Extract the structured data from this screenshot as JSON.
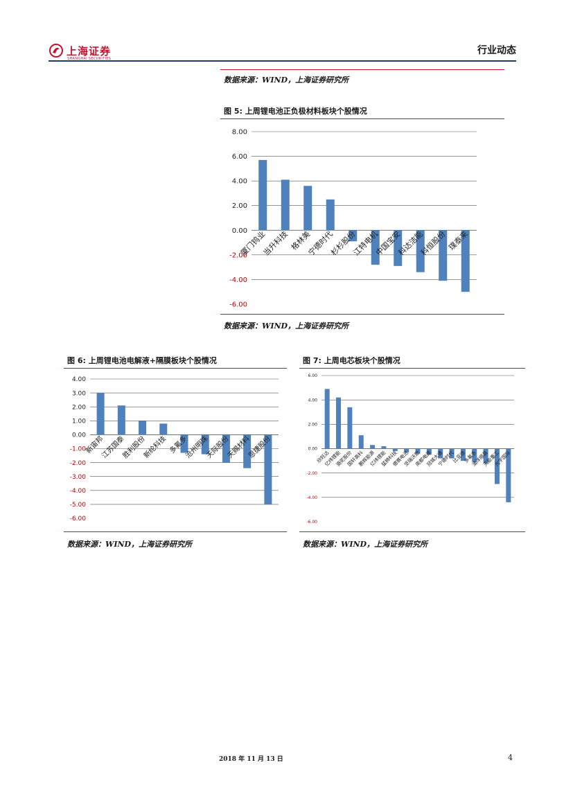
{
  "header": {
    "logo_cn": "上海证券",
    "logo_en": "SHANGHAI SECURITIES",
    "section": "行业动态",
    "colors": {
      "brand": "#c8102e",
      "rule": "#1f3a6e"
    }
  },
  "top_source": "数据来源：WIND，上海证券研究所",
  "figures": [
    {
      "title": "图 5:  上周锂电池正负极材料板块个股情况",
      "source": "数据来源：WIND，上海证券研究所"
    },
    {
      "title": "图 6:  上周锂电池电解液+隔膜板块个股情况",
      "source": "数据来源：WIND，上海证券研究所"
    },
    {
      "title": "图 7:  上周电芯板块个股情况",
      "source": "数据来源：WIND，上海证券研究所"
    }
  ],
  "chart_data": [
    {
      "type": "bar",
      "categories": [
        "厦门钨业",
        "当升科技",
        "格林美",
        "宁德时代",
        "杉杉股份",
        "江特电机",
        "中国宝安",
        "科达洁能",
        "科恒股份",
        "璞泰来"
      ],
      "values": [
        5.7,
        4.1,
        3.6,
        2.5,
        -0.9,
        -2.8,
        -2.9,
        -3.4,
        -4.1,
        -5.0
      ],
      "ylim": [
        -6,
        8
      ],
      "yticks": [
        "8.00",
        "6.00",
        "4.00",
        "2.00",
        "0.00",
        "-2.00",
        "-4.00",
        "-6.00"
      ],
      "grid": true,
      "bar_color": "#4f81bd",
      "negative_tick_color": "#c00000"
    },
    {
      "type": "bar",
      "categories": [
        "新宙邦",
        "江苏国泰",
        "胜利股份",
        "新纶科技",
        "多氟多",
        "沧州明珠",
        "天际股份",
        "天赐材料",
        "恩捷股份"
      ],
      "values": [
        3.0,
        2.1,
        1.0,
        0.8,
        -1.3,
        -1.4,
        -2.0,
        -2.4,
        -5.0
      ],
      "ylim": [
        -6,
        4
      ],
      "yticks": [
        "4.00",
        "3.00",
        "2.00",
        "1.00",
        "0.00",
        "-1.00",
        "-2.00",
        "-3.00",
        "-4.00",
        "-5.00",
        "-6.00"
      ],
      "grid": true,
      "bar_color": "#4f81bd",
      "negative_tick_color": "#c00000"
    },
    {
      "type": "bar",
      "categories": [
        "欣旺达",
        "亿纬锂能",
        "骆驼股份",
        "国轩高科",
        "鹏辉能源",
        "亿纬锂能",
        "猛狮科技",
        "德赛电池",
        "坚瑞沃能",
        "南都电源",
        "冠城大通",
        "宁德时代",
        "比亚迪",
        "多氟多",
        "澳洋顺昌",
        "天能重工",
        "光宇国际"
      ],
      "values": [
        4.9,
        4.2,
        3.4,
        1.1,
        0.3,
        0.2,
        -0.2,
        -0.3,
        -0.4,
        -0.5,
        -0.8,
        -0.8,
        -1.0,
        -1.1,
        -1.2,
        -2.9,
        -4.4
      ],
      "ylim": [
        -6,
        6
      ],
      "yticks": [
        "6.00",
        "4.00",
        "2.00",
        "0.00",
        "-2.00",
        "-4.00",
        "-6.00"
      ],
      "grid": true,
      "bar_color": "#4f81bd",
      "negative_tick_color": "#c00000"
    }
  ],
  "footer": {
    "date": "2018 年 11 月 13 日",
    "page": "4"
  }
}
